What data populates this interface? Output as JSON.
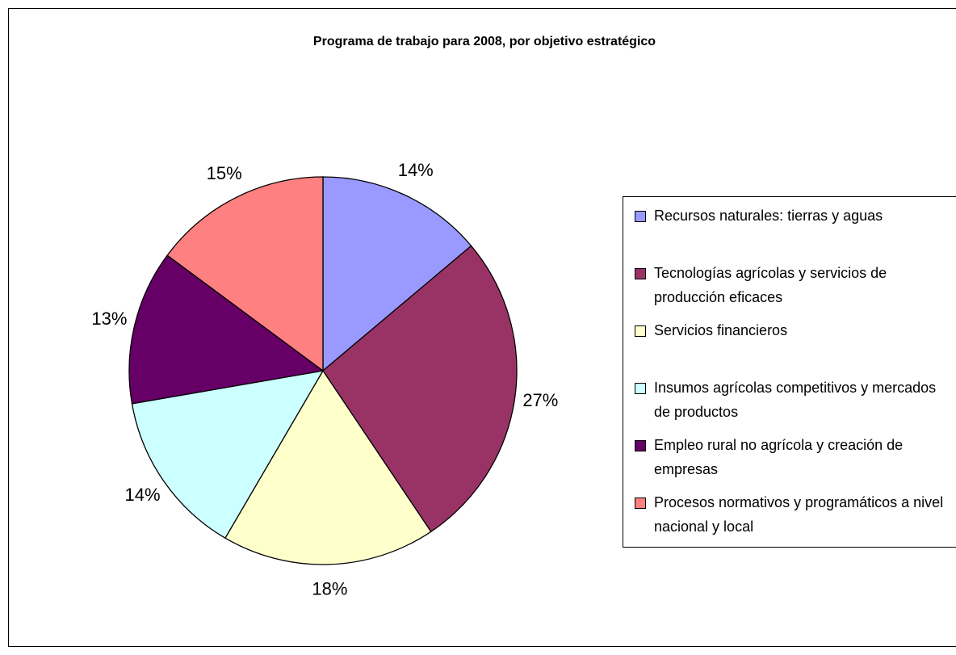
{
  "chart_data": {
    "type": "pie",
    "title": "Programa de trabajo para 2008, por objetivo estratégico",
    "categories": [
      "Recursos naturales: tierras y aguas",
      "Tecnologías agrícolas y servicios de producción eficaces",
      "Servicios financieros",
      "Insumos agrícolas competitivos y mercados de productos",
      "Empleo rural no agrícola y creación de empresas",
      "Procesos normativos y programáticos a nivel nacional y local"
    ],
    "values": [
      14,
      27,
      18,
      14,
      13,
      15
    ],
    "value_labels": [
      "14%",
      "27%",
      "18%",
      "14%",
      "13%",
      "15%"
    ],
    "colors": [
      "#9999ff",
      "#993366",
      "#ffffcc",
      "#ccffff",
      "#660066",
      "#ff8080"
    ]
  }
}
